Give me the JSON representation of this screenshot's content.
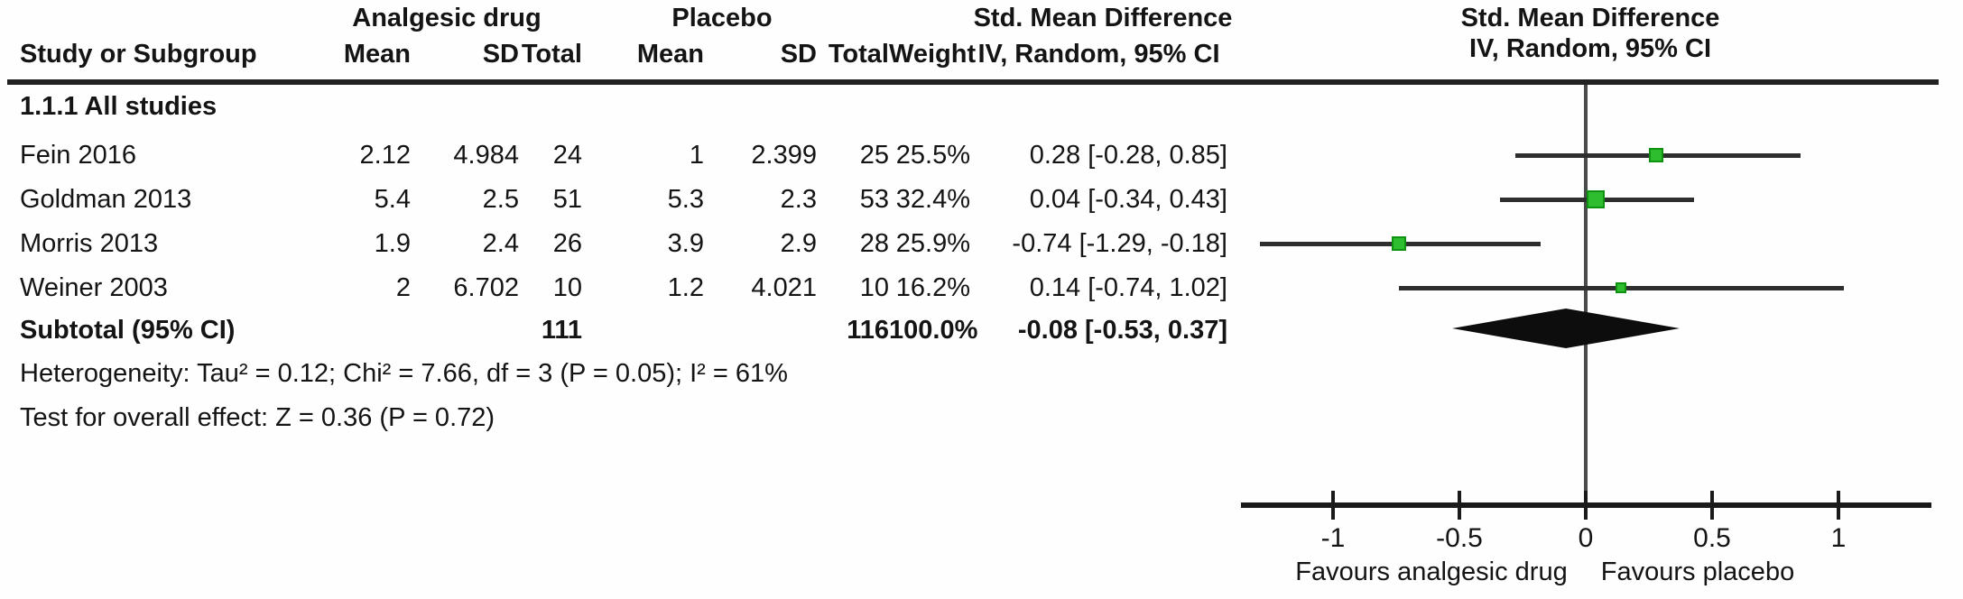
{
  "header": {
    "group1_label": "Analgesic drug",
    "group2_label": "Placebo",
    "effect_col_label_left": "Std. Mean Difference",
    "effect_col_label_right": "Std. Mean Difference",
    "col_study": "Study or Subgroup",
    "col_mean1": "Mean",
    "col_sd1": "SD",
    "col_total1": "Total",
    "col_mean2": "Mean",
    "col_sd2": "SD",
    "col_total2": "Total",
    "col_weight": "Weight",
    "col_method_left": "IV, Random, 95% CI",
    "col_method_right": "IV, Random, 95% CI"
  },
  "subgroup_label": "1.1.1 All studies",
  "chart_data": {
    "type": "forest",
    "effect_measure": "Std. Mean Difference (IV, Random, 95% CI)",
    "studies": [
      {
        "study": "Fein 2016",
        "mean1": "2.12",
        "sd1": "4.984",
        "total1": "24",
        "mean2": "1",
        "sd2": "2.399",
        "total2": "25",
        "weight": "25.5%",
        "weight_pct": 25.5,
        "ci_text": "0.28 [-0.28, 0.85]",
        "est": 0.28,
        "lo": -0.28,
        "hi": 0.85
      },
      {
        "study": "Goldman 2013",
        "mean1": "5.4",
        "sd1": "2.5",
        "total1": "51",
        "mean2": "5.3",
        "sd2": "2.3",
        "total2": "53",
        "weight": "32.4%",
        "weight_pct": 32.4,
        "ci_text": "0.04 [-0.34, 0.43]",
        "est": 0.04,
        "lo": -0.34,
        "hi": 0.43
      },
      {
        "study": "Morris 2013",
        "mean1": "1.9",
        "sd1": "2.4",
        "total1": "26",
        "mean2": "3.9",
        "sd2": "2.9",
        "total2": "28",
        "weight": "25.9%",
        "weight_pct": 25.9,
        "ci_text": "-0.74 [-1.29, -0.18]",
        "est": -0.74,
        "lo": -1.29,
        "hi": -0.18
      },
      {
        "study": "Weiner 2003",
        "mean1": "2",
        "sd1": "6.702",
        "total1": "10",
        "mean2": "1.2",
        "sd2": "4.021",
        "total2": "10",
        "weight": "16.2%",
        "weight_pct": 16.2,
        "ci_text": "0.14 [-0.74, 1.02]",
        "est": 0.14,
        "lo": -0.74,
        "hi": 1.02
      }
    ],
    "subtotal": {
      "label": "Subtotal (95% CI)",
      "total1": "111",
      "total2": "116",
      "weight": "100.0%",
      "ci_text": "-0.08 [-0.53, 0.37]",
      "est": -0.08,
      "lo": -0.53,
      "hi": 0.37
    },
    "axis": {
      "ticks": [
        -1,
        -0.5,
        0,
        0.5,
        1
      ],
      "tick_labels": [
        "-1",
        "-0.5",
        "0",
        "0.5",
        "1"
      ],
      "xmin": -1.37,
      "xmax": 1.37,
      "left_label": "Favours analgesic drug",
      "right_label": "Favours placebo"
    }
  },
  "footnotes": {
    "heterogeneity": "Heterogeneity: Tau² = 0.12; Chi² = 7.66, df = 3 (P = 0.05); I² = 61%",
    "overall_effect": "Test for overall effect: Z = 0.36 (P = 0.72)"
  },
  "colors": {
    "marker_fill": "#2ebd2e",
    "marker_border": "#0f9210",
    "ci_line": "#2e2e2e",
    "axis_line": "#1a1a1a",
    "zero_line": "#4a4a4a",
    "diamond": "#0d0d0d"
  }
}
